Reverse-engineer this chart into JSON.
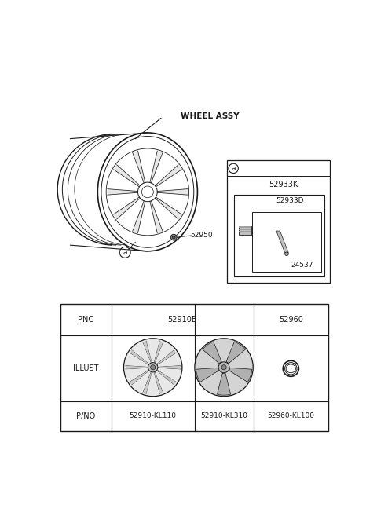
{
  "bg_color": "#ffffff",
  "wheel_assy_label": "WHEEL ASSY",
  "part_label_52950": "52950",
  "circle_a_label": "a",
  "inset_a_label": "a",
  "inset_52933K": "52933K",
  "inset_52933D": "52933D",
  "inset_24537": "24537",
  "pnc_label": "PNC",
  "pnc_col1": "52910B",
  "pnc_col2": "52960",
  "illust_label": "ILLUST",
  "pno_label": "P/NO",
  "pno1": "52910-KL110",
  "pno2": "52910-KL310",
  "pno3": "52960-KL100",
  "lc": "#1a1a1a",
  "gray1": "#c0c0c0",
  "gray2": "#e0e0e0",
  "gray3": "#a0a0a0",
  "gray4": "#d8d8d8"
}
